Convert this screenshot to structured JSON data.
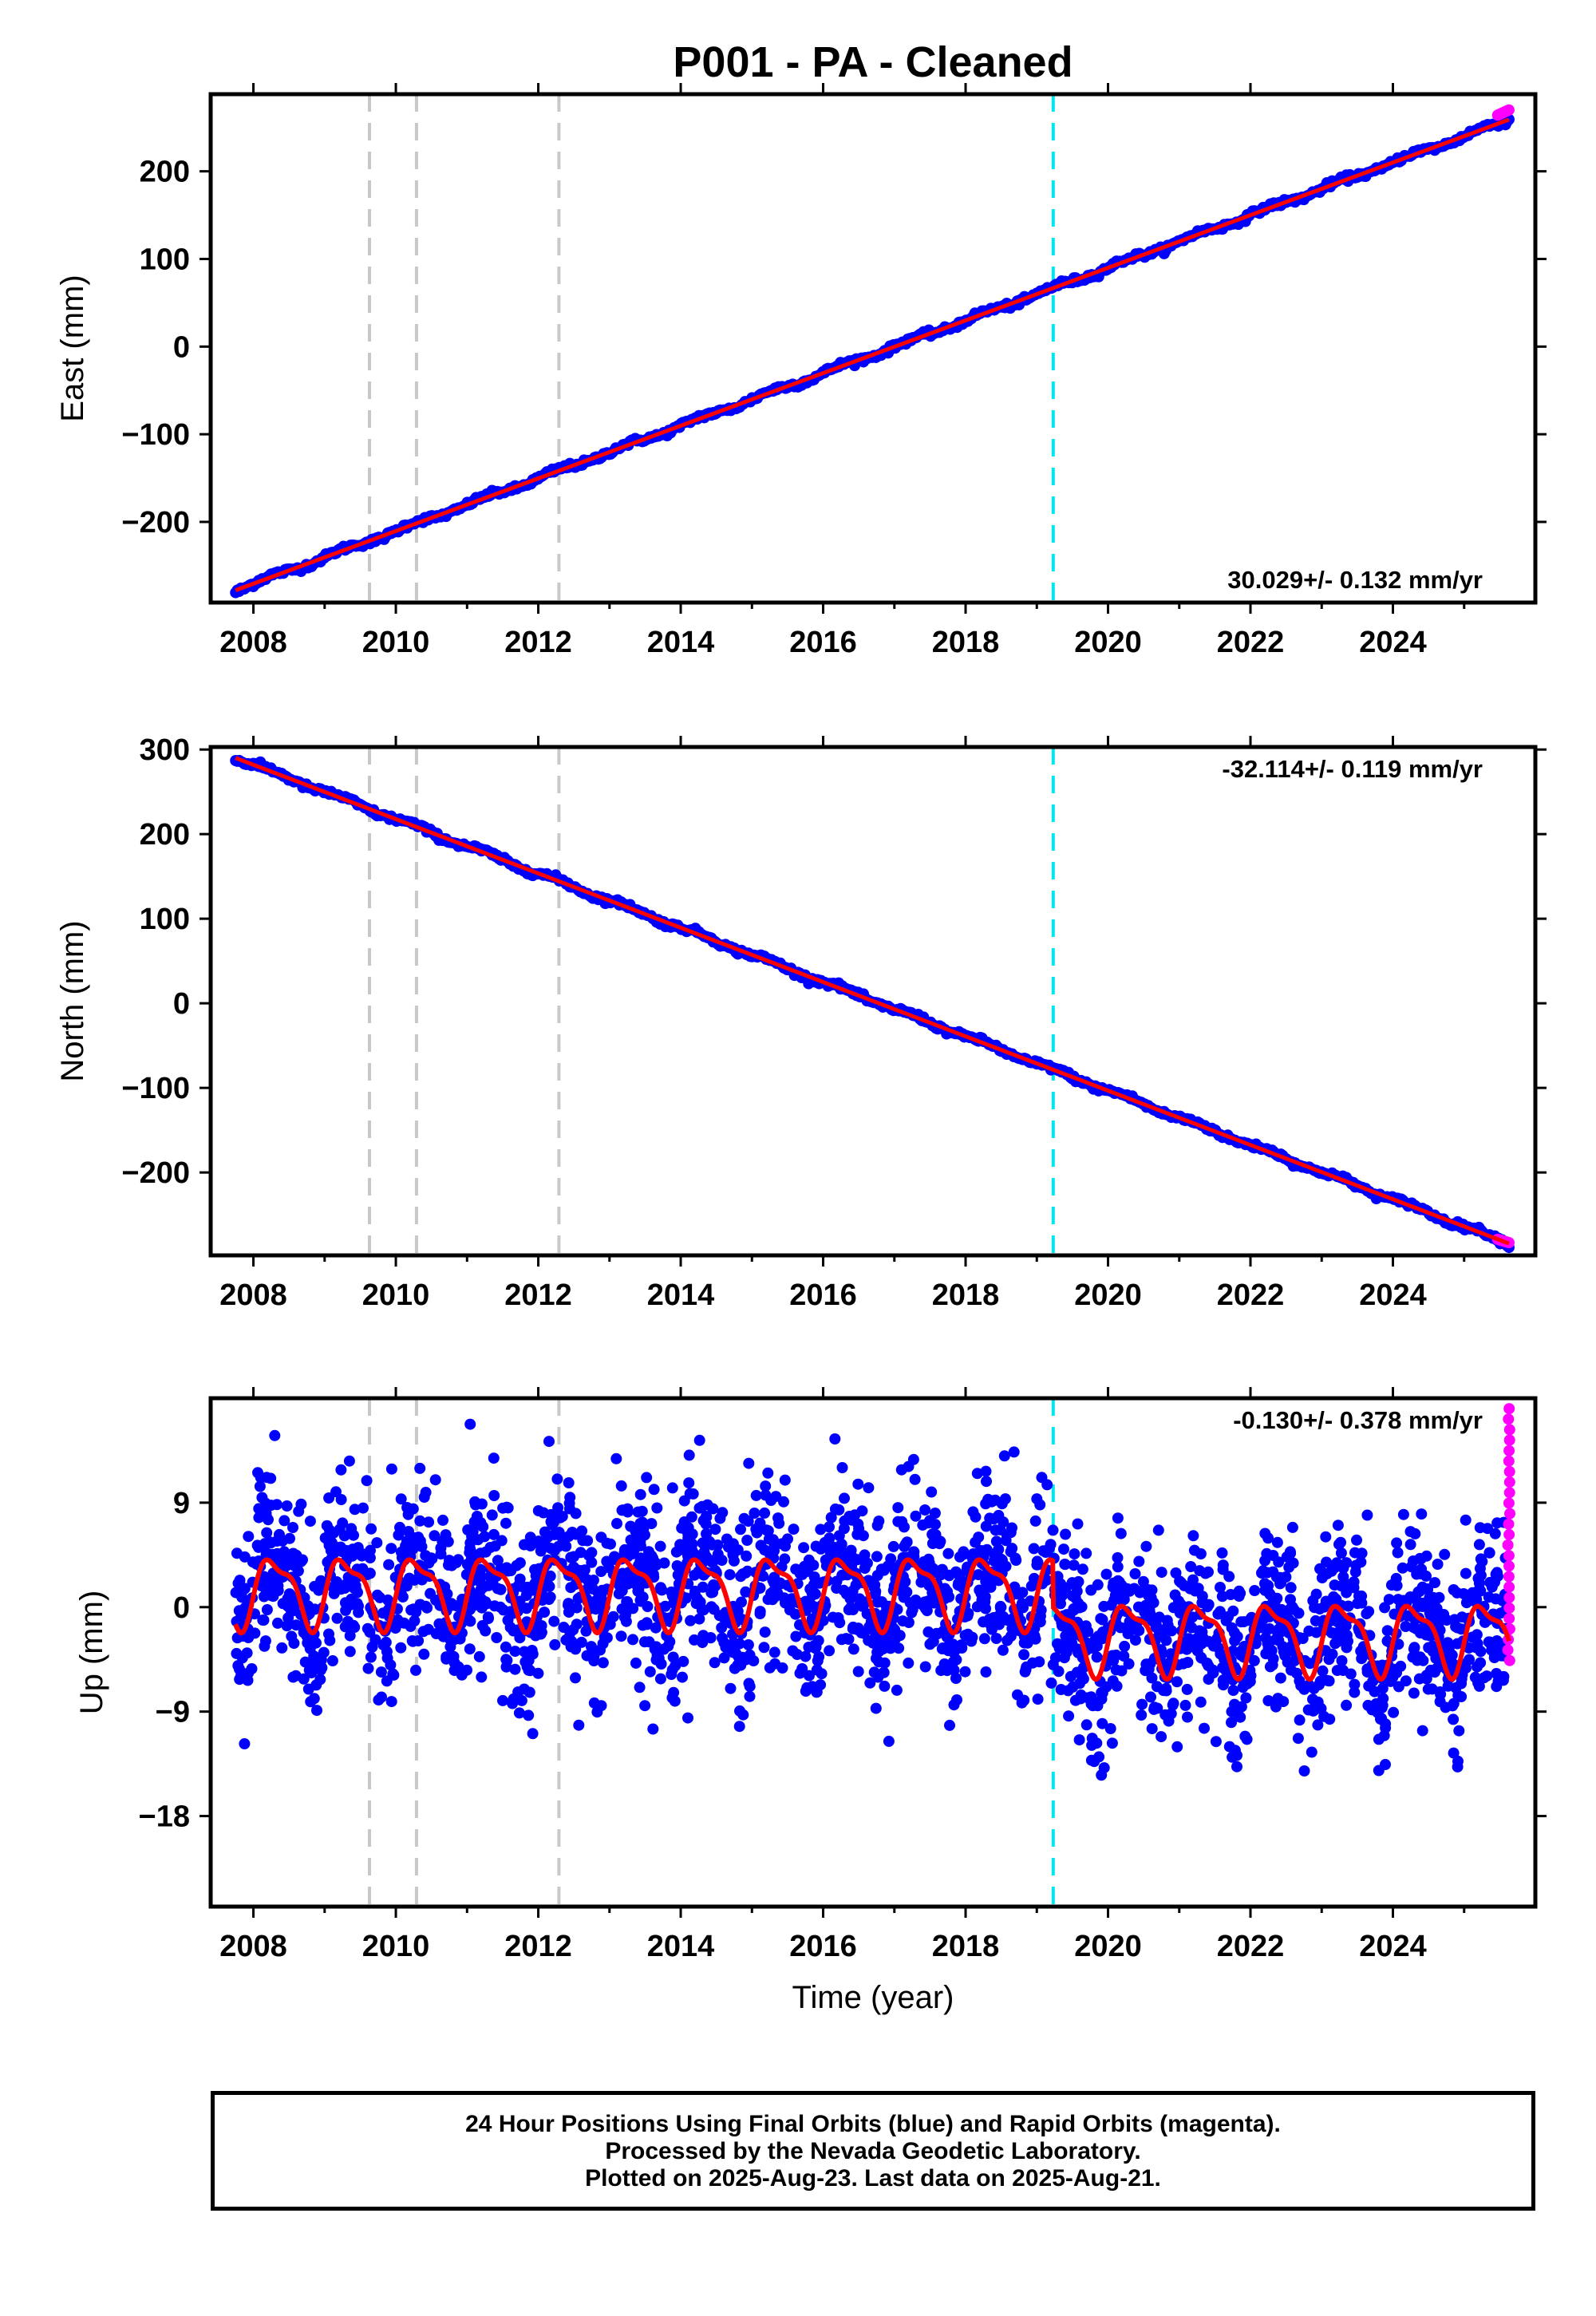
{
  "title": "P001  - PA - Cleaned",
  "xlabel": "Time (year)",
  "caption": {
    "line1": "24 Hour Positions Using Final Orbits (blue) and Rapid Orbits (magenta).",
    "line2": "Processed by the Nevada Geodetic Laboratory.",
    "line3": "Plotted on 2025-Aug-23. Last data on 2025-Aug-21."
  },
  "colors": {
    "final_orbit_points": "#0000ff",
    "rapid_orbit_points": "#ff00ff",
    "model_fit": "#ff0000",
    "equipment_change_lines": "#c8c8c8",
    "earthquake_line": "#00e5ee"
  },
  "chart_data": [
    {
      "type": "scatter",
      "panel": "east",
      "ylabel": "East (mm)",
      "velocity_label": "30.029+/- 0.132 mm/yr",
      "velocity_label_position": "bottom-right",
      "xlim": [
        2007.4,
        2026.0
      ],
      "ylim": [
        -292,
        288
      ],
      "x_ticks": [
        2008,
        2010,
        2012,
        2014,
        2016,
        2018,
        2020,
        2022,
        2024
      ],
      "y_ticks": [
        -200,
        -100,
        0,
        100,
        200
      ],
      "y_tick_labels": [
        "−200",
        "−100",
        "0",
        "100",
        "200"
      ],
      "series": [
        {
          "style": "points",
          "color": "blue",
          "start": [
            2007.75,
            -278
          ],
          "end": [
            2025.63,
            259
          ]
        },
        {
          "style": "line",
          "color": "red",
          "x": [
            2007.75,
            2025.63
          ],
          "y": [
            -278,
            259
          ]
        },
        {
          "style": "points",
          "color": "magenta",
          "start": [
            2025.47,
            264
          ],
          "end": [
            2025.63,
            270
          ]
        }
      ],
      "dashed_lines": [
        {
          "x": 2009.63,
          "color": "gray"
        },
        {
          "x": 2010.29,
          "color": "gray"
        },
        {
          "x": 2012.29,
          "color": "gray"
        },
        {
          "x": 2019.23,
          "color": "cyan"
        }
      ]
    },
    {
      "type": "scatter",
      "panel": "north",
      "ylabel": "North (mm)",
      "velocity_label": "-32.114+/- 0.119 mm/yr",
      "velocity_label_position": "top-right",
      "xlim": [
        2007.4,
        2026.0
      ],
      "ylim": [
        -298,
        303
      ],
      "x_ticks": [
        2008,
        2010,
        2012,
        2014,
        2016,
        2018,
        2020,
        2022,
        2024
      ],
      "y_ticks": [
        -200,
        -100,
        0,
        100,
        200,
        300
      ],
      "y_tick_labels": [
        "−200",
        "−100",
        "0",
        "100",
        "200",
        "300"
      ],
      "series": [
        {
          "style": "points",
          "color": "blue",
          "start": [
            2007.75,
            290
          ],
          "end": [
            2025.63,
            -284
          ]
        },
        {
          "style": "line",
          "color": "red",
          "x": [
            2007.75,
            2025.63
          ],
          "y": [
            290,
            -284
          ]
        },
        {
          "style": "points",
          "color": "magenta",
          "start": [
            2025.47,
            -279
          ],
          "end": [
            2025.63,
            -283
          ]
        }
      ],
      "dashed_lines": [
        {
          "x": 2009.63,
          "color": "gray"
        },
        {
          "x": 2010.29,
          "color": "gray"
        },
        {
          "x": 2012.29,
          "color": "gray"
        },
        {
          "x": 2019.23,
          "color": "cyan"
        }
      ]
    },
    {
      "type": "scatter",
      "panel": "up",
      "ylabel": "Up (mm)",
      "velocity_label": "-0.130+/- 0.378 mm/yr",
      "velocity_label_position": "top-right",
      "xlim": [
        2007.4,
        2026.0
      ],
      "ylim": [
        -25.8,
        18
      ],
      "x_ticks": [
        2008,
        2010,
        2012,
        2014,
        2016,
        2018,
        2020,
        2022,
        2024
      ],
      "y_ticks": [
        -18,
        -9,
        0,
        9
      ],
      "y_tick_labels": [
        "−18",
        "−9",
        "0",
        "9"
      ],
      "series": [
        {
          "style": "points",
          "color": "blue",
          "scatter_sd_mm": 3.8,
          "x_range": [
            2007.75,
            2025.63
          ]
        },
        {
          "style": "line",
          "color": "red",
          "model": "annual + semiannual",
          "mean_before_2019_23": 1.5,
          "mean_after_2019_23": -2.5,
          "annual_amplitude_mm": 2.8,
          "semiannual_amplitude_mm": 1.0
        },
        {
          "style": "points",
          "color": "magenta",
          "x_range": [
            2025.47,
            2025.63
          ],
          "y_range": [
            -4.6,
            17.1
          ]
        }
      ],
      "dashed_lines": [
        {
          "x": 2009.63,
          "color": "gray"
        },
        {
          "x": 2010.29,
          "color": "gray"
        },
        {
          "x": 2012.29,
          "color": "gray"
        },
        {
          "x": 2019.23,
          "color": "cyan"
        }
      ]
    }
  ]
}
